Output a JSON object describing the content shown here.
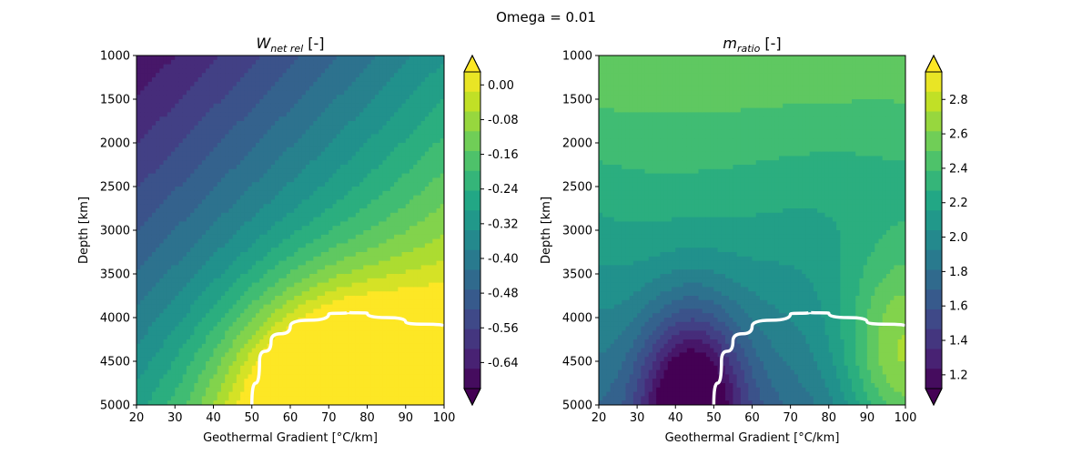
{
  "suptitle": "Omega = 0.01",
  "chart_data": [
    {
      "type": "heatmap",
      "title_main": "W",
      "title_sub": "net rel",
      "title_unit": " [-]",
      "xlabel": "Geothermal Gradient [°C/km]",
      "ylabel": "Depth [km]",
      "xlim": [
        20,
        100
      ],
      "ylim": [
        5000,
        1000
      ],
      "xticks": [
        "20",
        "30",
        "40",
        "50",
        "60",
        "70",
        "80",
        "90",
        "100"
      ],
      "yticks": [
        "1000",
        "1500",
        "2000",
        "2500",
        "3000",
        "3500",
        "4000",
        "4500",
        "5000"
      ],
      "colorbar": {
        "ticks": [
          "0.00",
          "-0.08",
          "-0.16",
          "-0.24",
          "-0.32",
          "-0.40",
          "-0.48",
          "-0.56",
          "-0.64"
        ],
        "tick_values": [
          0.0,
          -0.08,
          -0.16,
          -0.24,
          -0.32,
          -0.4,
          -0.48,
          -0.56,
          -0.64
        ],
        "range": [
          -0.7,
          0.03
        ],
        "extend": "both",
        "colormap": "viridis"
      },
      "white_curve": [
        [
          50,
          5000
        ],
        [
          52,
          4500
        ],
        [
          55,
          4270
        ],
        [
          60,
          4100
        ],
        [
          70,
          3960
        ],
        [
          75,
          3940
        ],
        [
          80,
          3950
        ],
        [
          90,
          4050
        ],
        [
          100,
          4100
        ]
      ]
    },
    {
      "type": "heatmap",
      "title_main": "m",
      "title_sub": "ratio",
      "title_unit": " [-]",
      "xlabel": "Geothermal Gradient [°C/km]",
      "ylabel": "Depth [km]",
      "xlim": [
        20,
        100
      ],
      "ylim": [
        5000,
        1000
      ],
      "xticks": [
        "20",
        "30",
        "40",
        "50",
        "60",
        "70",
        "80",
        "90",
        "100"
      ],
      "yticks": [
        "1000",
        "1500",
        "2000",
        "2500",
        "3000",
        "3500",
        "4000",
        "4500",
        "5000"
      ],
      "colorbar": {
        "ticks": [
          "2.8",
          "2.6",
          "2.4",
          "2.2",
          "2.0",
          "1.8",
          "1.6",
          "1.4",
          "1.2"
        ],
        "tick_values": [
          2.8,
          2.6,
          2.4,
          2.2,
          2.0,
          1.8,
          1.6,
          1.4,
          1.2
        ],
        "range": [
          1.12,
          2.96
        ],
        "extend": "both",
        "colormap": "viridis"
      },
      "white_curve": [
        [
          50,
          5000
        ],
        [
          52,
          4500
        ],
        [
          55,
          4270
        ],
        [
          60,
          4100
        ],
        [
          70,
          3960
        ],
        [
          75,
          3940
        ],
        [
          80,
          3950
        ],
        [
          90,
          4050
        ],
        [
          100,
          4100
        ]
      ]
    }
  ]
}
